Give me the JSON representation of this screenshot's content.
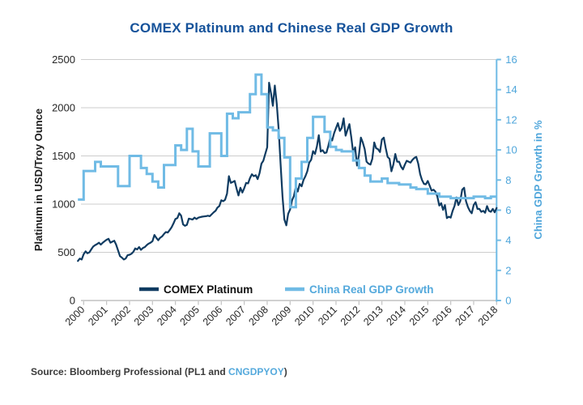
{
  "title": "COMEX Platinum and Chinese Real GDP Growth",
  "source": {
    "prefix": "Source: Bloomberg Professional (PL1 and ",
    "ticker": "CNGDPYOY",
    "suffix": ")"
  },
  "colors": {
    "title": "#15529A",
    "platinum_line": "#0F3B61",
    "gdp_line": "#70BBE5",
    "right_axis_text": "#4FA6DB",
    "left_axis_text": "#262626",
    "legend_platinum_text": "#111111",
    "legend_gdp_text": "#54A9DC",
    "grid": "#CDCDCD",
    "x_axis": "#C2C2C2"
  },
  "chart_data": {
    "type": "line",
    "title": "COMEX Platinum and Chinese Real GDP Growth",
    "grid": "horizontal",
    "legend_position": "bottom-center-inside",
    "x_axis": {
      "start": 1999.75,
      "end": 2018,
      "tick_labels": [
        "2000",
        "2001",
        "2002",
        "2003",
        "2004",
        "2005",
        "2006",
        "2007",
        "2008",
        "2009",
        "2010",
        "2011",
        "2012",
        "2013",
        "2014",
        "2015",
        "2016",
        "2017",
        "2018"
      ]
    },
    "left_axis": {
      "label": "Platinum in USD/Troy Ounce",
      "min": 0,
      "max": 2500,
      "ticks": [
        0,
        500,
        1000,
        1500,
        2000,
        2500
      ]
    },
    "right_axis": {
      "label": "China GDP Growth in %",
      "min": 0,
      "max": 16,
      "ticks": [
        0,
        2,
        4,
        6,
        8,
        10,
        12,
        14,
        16
      ]
    },
    "series": [
      {
        "name": "COMEX Platinum",
        "axis": "left",
        "style": "line",
        "unit": "USD/Troy Ounce",
        "color": "#0F3B61",
        "x_start": 1999.75,
        "x_step": 0.0833333,
        "values": [
          410,
          435,
          425,
          480,
          510,
          490,
          500,
          530,
          560,
          575,
          585,
          600,
          580,
          600,
          615,
          630,
          640,
          600,
          610,
          620,
          580,
          520,
          460,
          445,
          425,
          435,
          470,
          475,
          485,
          505,
          540,
          530,
          555,
          525,
          545,
          555,
          575,
          590,
          600,
          615,
          680,
          650,
          625,
          650,
          665,
          690,
          710,
          705,
          730,
          760,
          800,
          845,
          855,
          905,
          880,
          790,
          775,
          785,
          850,
          845,
          840,
          860,
          845,
          860,
          865,
          870,
          872,
          875,
          880,
          875,
          895,
          915,
          930,
          965,
          980,
          1040,
          1030,
          1045,
          1110,
          1290,
          1220,
          1230,
          1240,
          1160,
          1090,
          1170,
          1120,
          1165,
          1220,
          1215,
          1270,
          1310,
          1290,
          1300,
          1260,
          1320,
          1420,
          1450,
          1520,
          1590,
          2260,
          2150,
          2020,
          2230,
          2040,
          1780,
          1420,
          1080,
          840,
          780,
          900,
          945,
          1040,
          1085,
          1180,
          1130,
          1210,
          1185,
          1250,
          1290,
          1340,
          1430,
          1460,
          1550,
          1520,
          1600,
          1715,
          1545,
          1560,
          1530,
          1535,
          1605,
          1690,
          1660,
          1735,
          1790,
          1840,
          1760,
          1790,
          1890,
          1710,
          1770,
          1830,
          1690,
          1530,
          1590,
          1400,
          1510,
          1690,
          1640,
          1570,
          1440,
          1420,
          1410,
          1470,
          1640,
          1580,
          1570,
          1540,
          1670,
          1690,
          1580,
          1490,
          1470,
          1340,
          1410,
          1520,
          1440,
          1440,
          1390,
          1360,
          1410,
          1450,
          1440,
          1430,
          1460,
          1480,
          1490,
          1420,
          1310,
          1250,
          1210,
          1205,
          1240,
          1190,
          1140,
          1150,
          1130,
          1080,
          985,
          1010,
          940,
          990,
          855,
          870,
          860,
          930,
          980,
          1070,
          990,
          1030,
          1150,
          1170,
          1030,
          970,
          930,
          905,
          990,
          1020,
          950,
          950,
          920,
          930,
          910,
          980,
          930,
          920,
          950,
          915,
          960
        ]
      },
      {
        "name": "China Real GDP Growth",
        "axis": "right",
        "style": "step",
        "unit": "%",
        "color": "#70BBE5",
        "x_start": 1999.75,
        "x_step": 0.25,
        "values": [
          6.7,
          8.6,
          8.6,
          9.2,
          8.9,
          8.9,
          8.9,
          7.6,
          7.6,
          9.6,
          9.6,
          8.8,
          8.4,
          7.9,
          7.5,
          9.0,
          9.0,
          10.3,
          10.0,
          11.4,
          9.9,
          8.9,
          8.9,
          11.1,
          11.1,
          9.6,
          12.4,
          12.1,
          12.5,
          12.5,
          13.7,
          15.0,
          13.7,
          11.5,
          11.3,
          10.8,
          9.5,
          6.2,
          8.1,
          9.2,
          10.8,
          12.2,
          12.2,
          11.2,
          10.2,
          10.0,
          9.9,
          9.9,
          9.3,
          8.8,
          8.3,
          7.9,
          7.9,
          8.1,
          7.8,
          7.8,
          7.7,
          7.7,
          7.5,
          7.4,
          7.4,
          7.1,
          7.1,
          6.9,
          6.9,
          6.8,
          6.8,
          6.8,
          6.8,
          6.9,
          6.9,
          6.8,
          6.9
        ]
      }
    ]
  }
}
